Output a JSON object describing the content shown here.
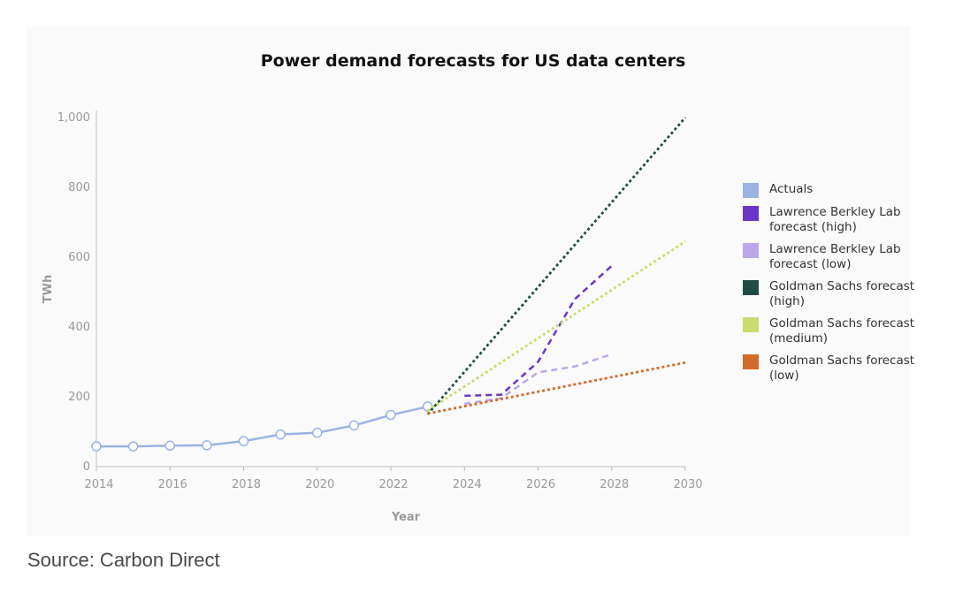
{
  "chart_data": {
    "type": "line",
    "title": "Power demand forecasts for US data centers",
    "xlabel": "Year",
    "ylabel": "TWh",
    "xlim": [
      2014,
      2030
    ],
    "ylim": [
      0,
      1000
    ],
    "x_ticks": [
      "2014",
      "2016",
      "2018",
      "2020",
      "2022",
      "2024",
      "2026",
      "2028",
      "2030"
    ],
    "y_ticks": [
      "0",
      "200",
      "400",
      "600",
      "800",
      "1,000"
    ],
    "grid": false,
    "legend_position": "right",
    "series": [
      {
        "name": "Actuals",
        "color": "#9bb3e3",
        "style": "solid-markers",
        "points": [
          [
            2014,
            58
          ],
          [
            2015,
            58
          ],
          [
            2016,
            60
          ],
          [
            2017,
            61
          ],
          [
            2018,
            73
          ],
          [
            2019,
            92
          ],
          [
            2020,
            97
          ],
          [
            2021,
            118
          ],
          [
            2022,
            148
          ],
          [
            2023,
            172
          ]
        ]
      },
      {
        "name": "Lawrence Berkley Lab forecast (high)",
        "color": "#6a35c9",
        "style": "dashed",
        "points": [
          [
            2024,
            203
          ],
          [
            2025,
            206
          ],
          [
            2026,
            300
          ],
          [
            2027,
            480
          ],
          [
            2028,
            575
          ]
        ]
      },
      {
        "name": "Lawrence Berkley Lab forecast (low)",
        "color": "#bba6ea",
        "style": "dashed",
        "points": [
          [
            2024,
            180
          ],
          [
            2025,
            196
          ],
          [
            2026,
            270
          ],
          [
            2027,
            287
          ],
          [
            2028,
            322
          ]
        ]
      },
      {
        "name": "Goldman Sachs forecast (high)",
        "color": "#1f4d46",
        "style": "dotted",
        "points": [
          [
            2023,
            150
          ],
          [
            2030,
            1000
          ]
        ]
      },
      {
        "name": "Goldman Sachs forecast (medium)",
        "color": "#c8dd6e",
        "style": "dotted",
        "points": [
          [
            2023,
            160
          ],
          [
            2030,
            645
          ]
        ]
      },
      {
        "name": "Goldman Sachs forecast (low)",
        "color": "#d26a2a",
        "style": "dotted",
        "points": [
          [
            2023,
            152
          ],
          [
            2030,
            298
          ]
        ]
      }
    ]
  },
  "legend": [
    {
      "label": "Actuals",
      "color": "#9bb3e3"
    },
    {
      "label": "Lawrence Berkley Lab forecast (high)",
      "color": "#6a35c9"
    },
    {
      "label": "Lawrence Berkley Lab forecast (low)",
      "color": "#bba6ea"
    },
    {
      "label": "Goldman Sachs forecast (high)",
      "color": "#1f4d46"
    },
    {
      "label": "Goldman Sachs forecast (medium)",
      "color": "#c8dd6e"
    },
    {
      "label": "Goldman Sachs forecast (low)",
      "color": "#d26a2a"
    }
  ],
  "source": "Source: Carbon Direct"
}
